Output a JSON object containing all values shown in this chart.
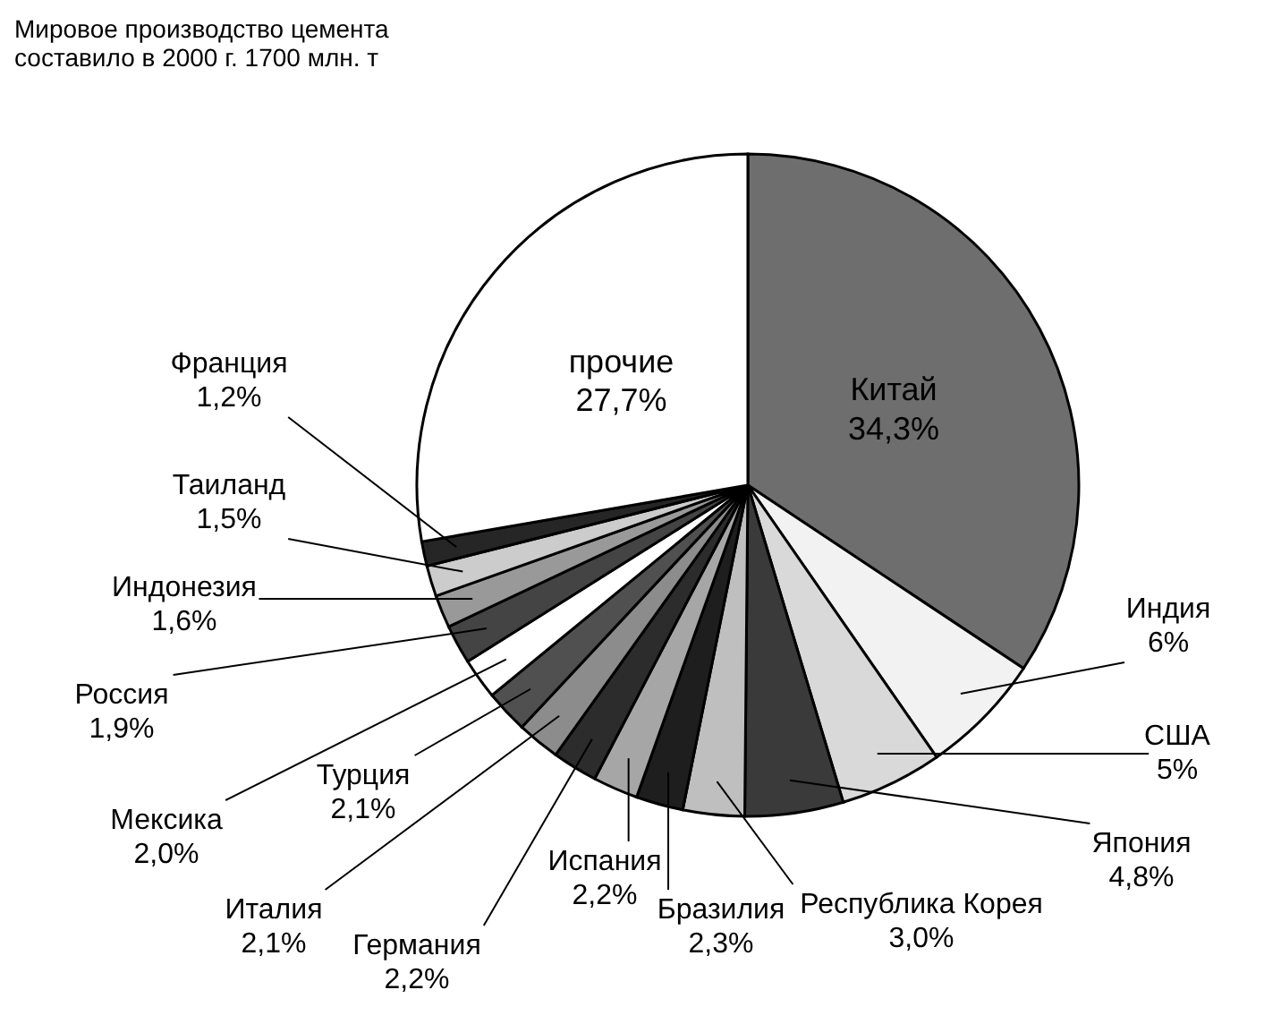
{
  "chart_data": {
    "type": "pie",
    "title": "Мировое производство цемента составило в 2000 г. 1700 млн. т",
    "categories": [
      "Китай",
      "Индия",
      "США",
      "Япония",
      "Республика Корея",
      "Бразилия",
      "Испания",
      "Германия",
      "Италия",
      "Турция",
      "Мексика",
      "Россия",
      "Индонезия",
      "Таиланд",
      "Франция",
      "прочие"
    ],
    "values": [
      34.3,
      6,
      5,
      4.8,
      3.0,
      2.3,
      2.2,
      2.2,
      2.1,
      2.1,
      2.0,
      1.9,
      1.6,
      1.5,
      1.2,
      27.7
    ],
    "value_labels": [
      "34,3%",
      "6%",
      "5%",
      "4,8%",
      "3,0%",
      "2,3%",
      "2,2%",
      "2,2%",
      "2,1%",
      "2,1%",
      "2,0%",
      "1,9%",
      "1,6%",
      "1,5%",
      "1,2%",
      "27,7%"
    ],
    "colors": [
      "#6e6e6e",
      "#f2f2f2",
      "#d9d9d9",
      "#3a3a3a",
      "#bfbfbf",
      "#1e1e1e",
      "#a6a6a6",
      "#2c2c2c",
      "#8c8c8c",
      "#505050",
      "#ffffff",
      "#444444",
      "#999999",
      "#cccccc",
      "#262626",
      "#ffffff"
    ],
    "legend": false
  }
}
